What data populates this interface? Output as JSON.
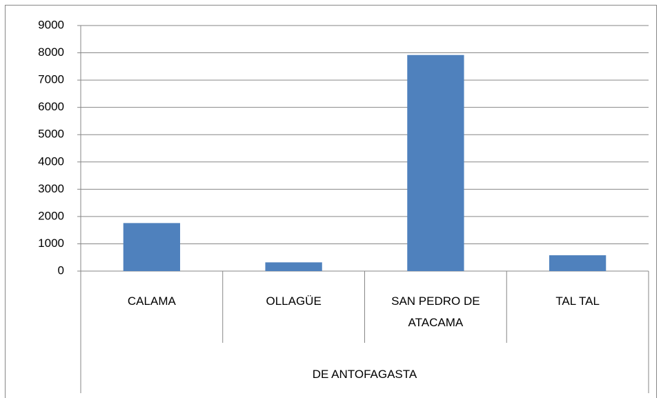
{
  "chart_data": {
    "type": "bar",
    "categories": [
      "CALAMA",
      "OLLAGÜE",
      "SAN PEDRO DE ATACAMA",
      "TAL TAL"
    ],
    "group": "DE ANTOFAGASTA",
    "values": [
      1760,
      320,
      7920,
      580
    ],
    "color": "#4f81bd",
    "ylim": [
      0,
      9000
    ],
    "yticks": [
      0,
      1000,
      2000,
      3000,
      4000,
      5000,
      6000,
      7000,
      8000,
      9000
    ],
    "grid": true
  }
}
